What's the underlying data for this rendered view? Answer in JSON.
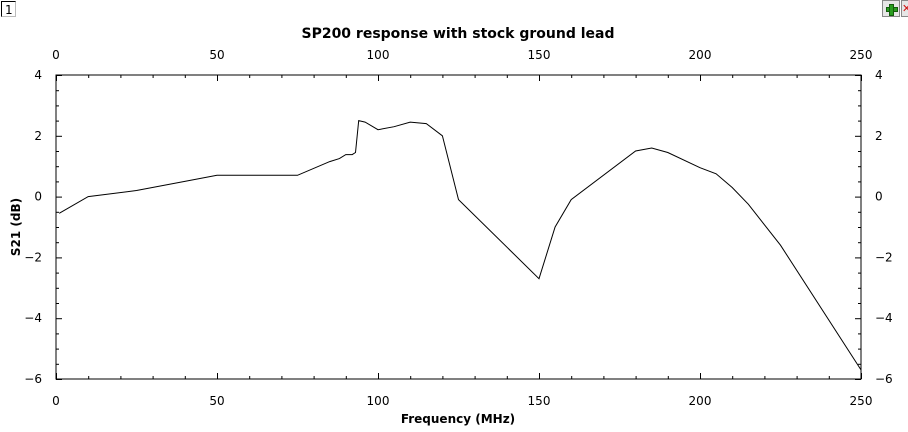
{
  "window": {
    "plot_index": "1"
  },
  "toolbar": {
    "add_icon": "plus-icon",
    "close_icon": "close-icon"
  },
  "chart_data": {
    "type": "line",
    "title": "SP200 response with stock ground lead",
    "xlabel": "Frequency (MHz)",
    "ylabel": "S21 (dB)",
    "xlim": [
      0,
      250
    ],
    "ylim": [
      -6,
      4
    ],
    "x_ticks": [
      0,
      50,
      100,
      150,
      200,
      250
    ],
    "y_ticks": [
      -6,
      -4,
      -2,
      0,
      2,
      4
    ],
    "grid": false,
    "line_color": "#000000",
    "series": [
      {
        "x": [
          1,
          10,
          25,
          40,
          50,
          62,
          75,
          85,
          88,
          90,
          92,
          93,
          94,
          96,
          100,
          105,
          110,
          115,
          120,
          125,
          150,
          155,
          160,
          180,
          185,
          190,
          200,
          205,
          210,
          215,
          225,
          250
        ],
        "y": [
          -0.55,
          0.0,
          0.2,
          0.5,
          0.7,
          0.7,
          0.7,
          1.15,
          1.25,
          1.38,
          1.38,
          1.45,
          2.5,
          2.45,
          2.2,
          2.3,
          2.45,
          2.4,
          2.0,
          -0.1,
          -2.7,
          -1.0,
          -0.1,
          1.5,
          1.6,
          1.45,
          0.95,
          0.75,
          0.3,
          -0.25,
          -1.6,
          -5.7
        ]
      }
    ]
  }
}
